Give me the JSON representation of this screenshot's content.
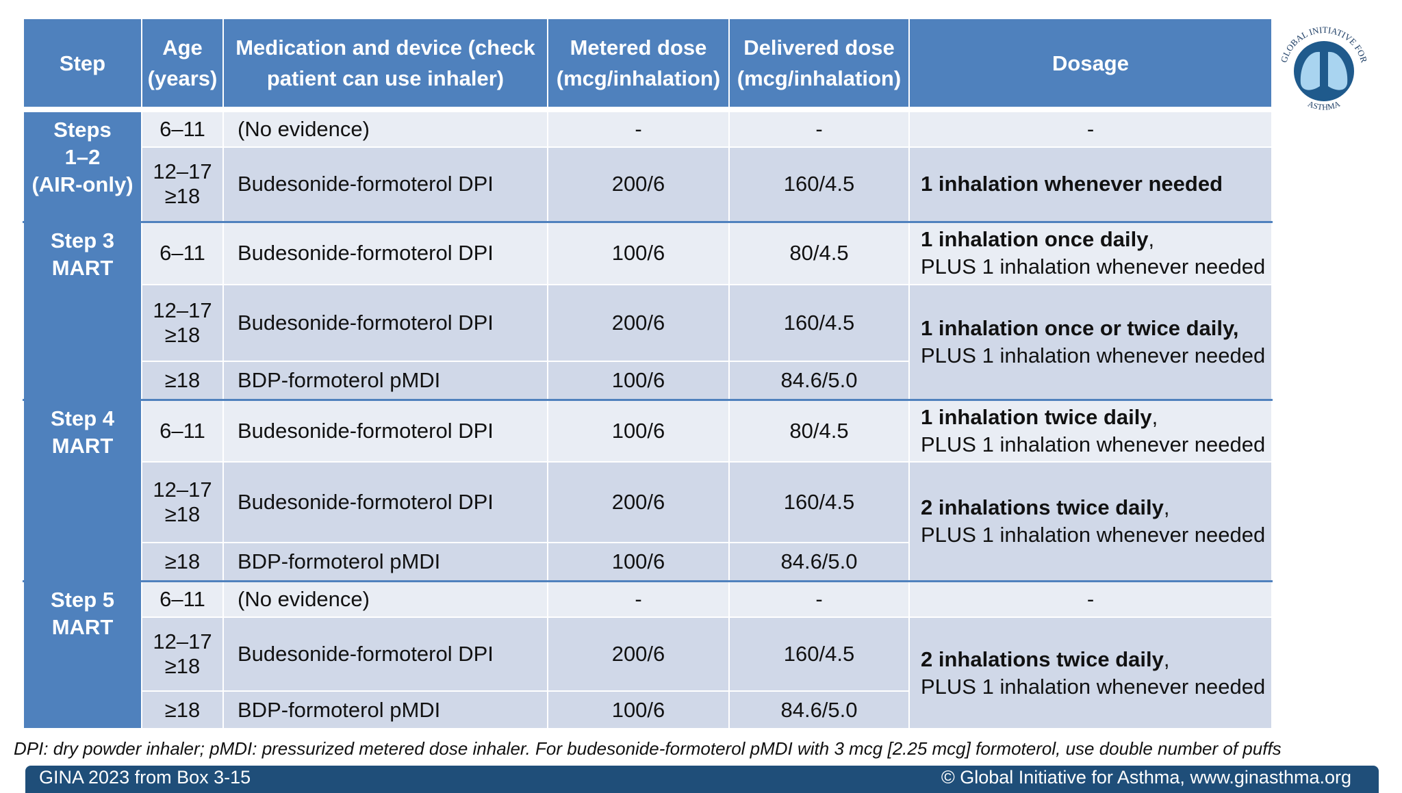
{
  "logo": {
    "top": "GLOBAL INITIATIVE FOR",
    "bottom": "ASTHMA"
  },
  "table": {
    "header": [
      "Step",
      "Age (years)",
      "Medication and device (check patient can use inhaler)",
      "Metered dose (mcg/inhalation)",
      "Delivered dose (mcg/inhalation)",
      "Dosage"
    ],
    "groups": [
      {
        "step": [
          "Steps",
          "1–2",
          "(AIR-only)"
        ],
        "rows": [
          {
            "age": [
              "6–11"
            ],
            "medication": "(No evidence)",
            "metered": "-",
            "delivered": "-"
          },
          {
            "age": [
              "12–17",
              "≥18"
            ],
            "medication": "Budesonide-formoterol DPI",
            "metered": "200/6",
            "delivered": "160/4.5"
          }
        ],
        "dosages": [
          {
            "text": "-"
          },
          {
            "bold": "1 inhalation whenever needed"
          }
        ]
      },
      {
        "step": [
          "Step 3",
          "MART"
        ],
        "rows": [
          {
            "age": [
              "6–11"
            ],
            "medication": "Budesonide-formoterol DPI",
            "metered": "100/6",
            "delivered": "80/4.5"
          },
          {
            "age": [
              "12–17",
              "≥18"
            ],
            "medication": "Budesonide-formoterol DPI",
            "metered": "200/6",
            "delivered": "160/4.5"
          },
          {
            "age": [
              "≥18"
            ],
            "medication": "BDP-formoterol pMDI",
            "metered": "100/6",
            "delivered": "84.6/5.0"
          }
        ],
        "dosages": [
          {
            "bold": "1 inhalation once daily",
            "sep": ",",
            "plus": "PLUS 1 inhalation whenever needed"
          },
          {
            "bold": "1 inhalation once or twice daily,",
            "plus": "PLUS 1 inhalation whenever needed"
          }
        ]
      },
      {
        "step": [
          "Step 4",
          "MART"
        ],
        "rows": [
          {
            "age": [
              "6–11"
            ],
            "medication": "Budesonide-formoterol DPI",
            "metered": "100/6",
            "delivered": "80/4.5"
          },
          {
            "age": [
              "12–17",
              "≥18"
            ],
            "medication": "Budesonide-formoterol DPI",
            "metered": "200/6",
            "delivered": "160/4.5"
          },
          {
            "age": [
              "≥18"
            ],
            "medication": "BDP-formoterol pMDI",
            "metered": "100/6",
            "delivered": "84.6/5.0"
          }
        ],
        "dosages": [
          {
            "bold": "1 inhalation twice daily",
            "sep": ",",
            "plus": "PLUS 1 inhalation whenever needed"
          },
          {
            "bold": "2 inhalations twice daily",
            "sep": ",",
            "plus": "PLUS 1 inhalation whenever needed"
          }
        ]
      },
      {
        "step": [
          "Step 5",
          "MART"
        ],
        "rows": [
          {
            "age": [
              "6–11"
            ],
            "medication": "(No evidence)",
            "metered": "-",
            "delivered": "-"
          },
          {
            "age": [
              "12–17",
              "≥18"
            ],
            "medication": "Budesonide-formoterol DPI",
            "metered": "200/6",
            "delivered": "160/4.5"
          },
          {
            "age": [
              "≥18"
            ],
            "medication": "BDP-formoterol pMDI",
            "metered": "100/6",
            "delivered": "84.6/5.0"
          }
        ],
        "dosages": [
          {
            "text": "-"
          },
          {
            "bold": "2 inhalations twice daily",
            "sep": ",",
            "plus": "PLUS 1 inhalation whenever needed"
          }
        ]
      }
    ]
  },
  "footnote": "DPI: dry powder inhaler; pMDI: pressurized metered dose inhaler. For budesonide-formoterol pMDI with 3 mcg [2.25 mcg] formoterol, use double number of puffs",
  "footer": {
    "source": "GINA 2023 from Box 3-15",
    "copyright": "© Global Initiative for Asthma, www.ginasthma.org"
  }
}
